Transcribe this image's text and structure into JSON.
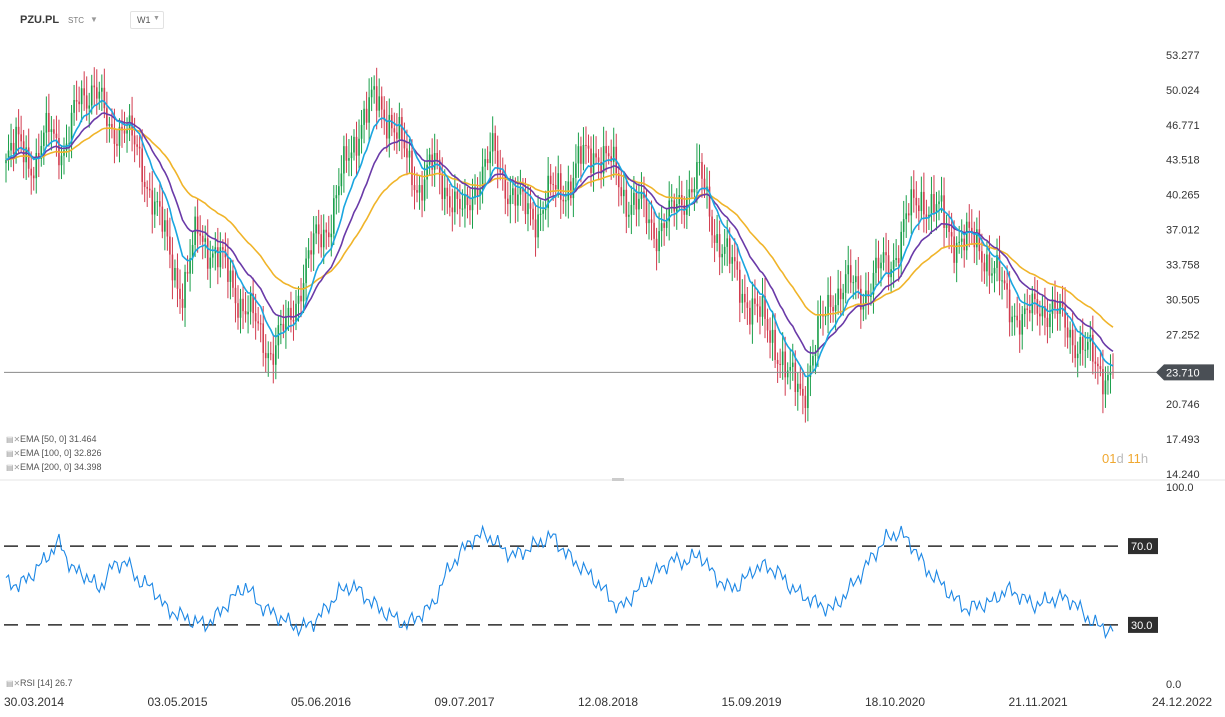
{
  "header": {
    "symbol": "PZU.PL",
    "mode": "STC",
    "timeframe": "W1"
  },
  "legend": [
    {
      "text": "EMA  [50,  0]  31.464"
    },
    {
      "text": "EMA  [100,  0]  32.826"
    },
    {
      "text": "EMA  [200,  0]  34.398"
    }
  ],
  "rsi_legend": "RSI  [14]  26.7",
  "countdown": {
    "d": "01",
    "du": "d",
    "h": "11",
    "hu": "h"
  },
  "colors": {
    "up": "#1a9f4a",
    "down": "#d23b4e",
    "ema50": "#1aa6e0",
    "ema100": "#6a3aa8",
    "ema200": "#f0b429",
    "rsi": "#1e88e5"
  },
  "chart_data": [
    {
      "type": "candlestick",
      "title": "",
      "price_axis": [
        "53.277",
        "50.024",
        "46.771",
        "43.518",
        "40.265",
        "37.012",
        "33.758",
        "30.505",
        "27.252",
        "20.746",
        "17.493",
        "14.240"
      ],
      "time_axis": [
        "30.03.2014",
        "03.05.2015",
        "05.06.2016",
        "09.07.2017",
        "12.08.2018",
        "15.09.2019",
        "18.10.2020",
        "21.11.2021",
        "24.12.2022"
      ],
      "ylim": [
        14.24,
        53.277
      ],
      "last_price": "23.710",
      "series": [
        {
          "name": "EMA [50, 0]",
          "last": 31.464
        },
        {
          "name": "EMA [100, 0]",
          "last": 32.826
        },
        {
          "name": "EMA [200, 0]",
          "last": 34.398
        }
      ],
      "close_path": [
        43,
        45.5,
        42.5,
        47,
        44,
        49.5,
        50.5,
        46,
        47,
        43.5,
        40,
        35,
        31,
        37,
        35,
        33,
        30,
        28,
        25.5,
        28,
        32,
        36,
        38,
        43,
        47,
        49,
        47.5,
        44,
        41,
        43,
        40.5,
        38,
        42,
        44,
        41,
        39,
        38.5,
        40.5,
        41,
        43.5,
        44.5,
        43,
        40,
        39,
        37,
        38,
        40.5,
        42,
        37,
        34,
        31,
        29,
        27,
        23,
        22,
        27,
        31,
        32,
        31,
        33,
        34,
        38,
        40,
        39,
        36.5,
        36,
        35.5,
        33,
        30,
        28.5,
        30,
        29.5,
        27.5,
        26,
        24,
        23.7
      ]
    },
    {
      "type": "line",
      "title": "",
      "y_axis": [
        "100.0",
        "70.0",
        "30.0",
        "0.0"
      ],
      "ylim": [
        0,
        100
      ],
      "levels": [
        70.0,
        30.0
      ],
      "series": [
        {
          "name": "RSI [14]",
          "last": 26.7
        }
      ],
      "values": [
        52,
        50,
        56,
        64,
        72,
        58,
        55,
        48,
        60,
        62,
        52,
        49,
        38,
        35,
        32,
        30,
        36,
        44,
        50,
        40,
        36,
        32,
        28,
        31,
        38,
        47,
        50,
        44,
        38,
        34,
        30,
        35,
        40,
        56,
        66,
        74,
        76,
        70,
        65,
        68,
        72,
        75,
        66,
        60,
        54,
        46,
        38,
        45,
        52,
        58,
        63,
        62,
        66,
        56,
        49,
        50,
        58,
        60,
        56,
        48,
        44,
        40,
        38,
        46,
        55,
        65,
        74,
        77,
        70,
        58,
        52,
        44,
        38,
        40,
        42,
        48,
        45,
        40,
        42,
        44,
        42,
        34,
        29,
        27
      ]
    }
  ]
}
